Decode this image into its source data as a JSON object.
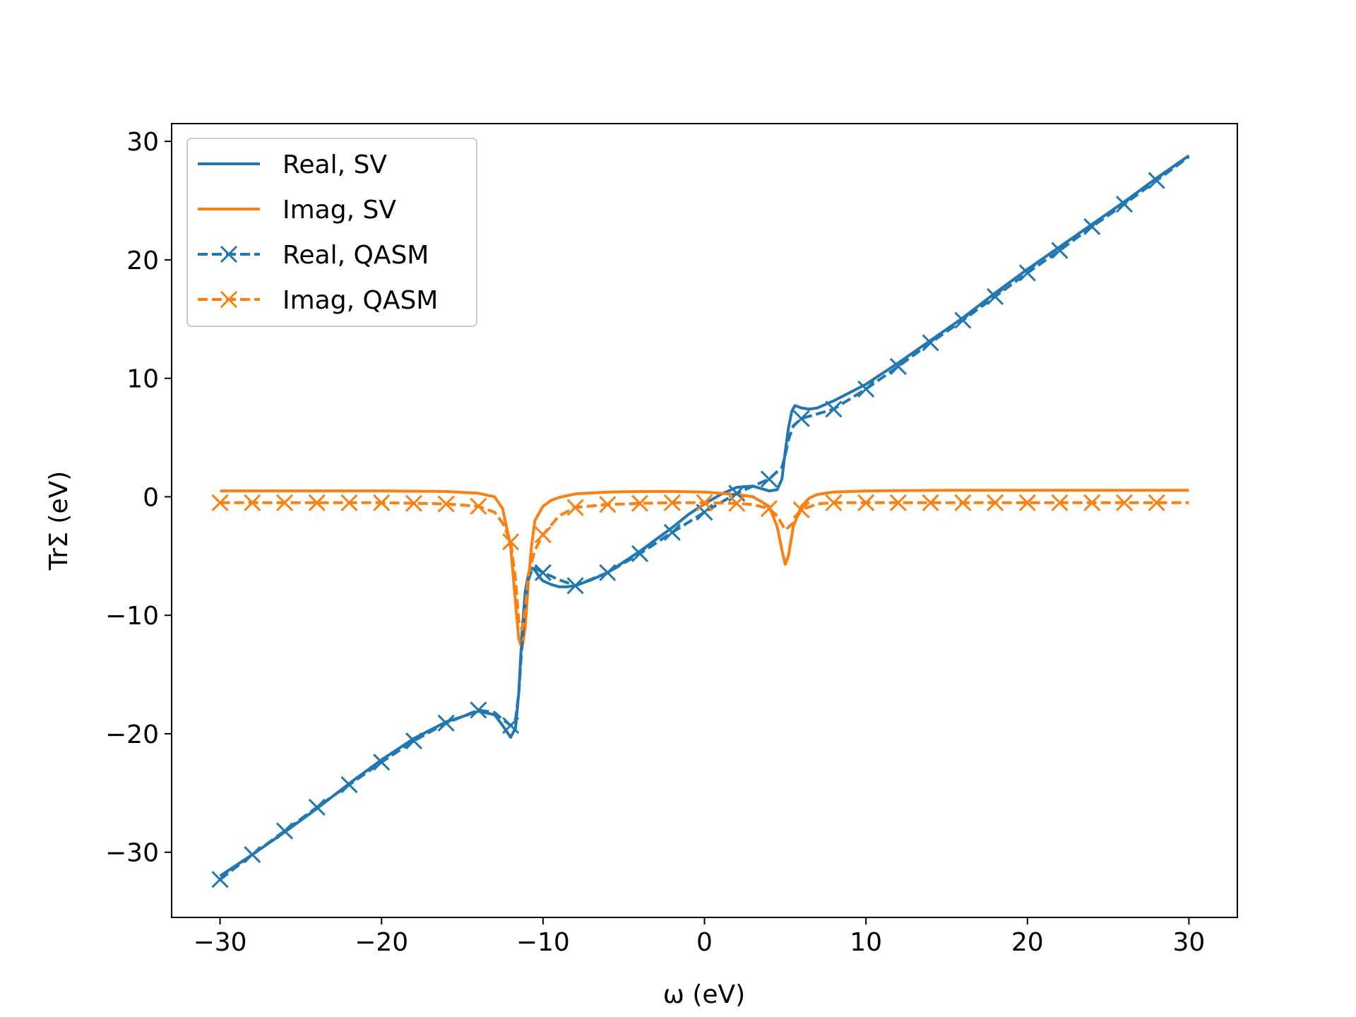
{
  "chart_data": {
    "type": "line",
    "xlabel": "ω (eV)",
    "ylabel": "TrΣ (eV)",
    "xlim": [
      -33,
      33
    ],
    "ylim": [
      -35.5,
      31.5
    ],
    "xticks": [
      -30,
      -20,
      -10,
      0,
      10,
      20,
      30
    ],
    "yticks": [
      -30,
      -20,
      -10,
      0,
      10,
      20,
      30
    ],
    "xtick_labels": [
      "−30",
      "−20",
      "−10",
      "0",
      "10",
      "20",
      "30"
    ],
    "ytick_labels": [
      "−30",
      "−20",
      "−10",
      "0",
      "10",
      "20",
      "30"
    ],
    "grid": false,
    "legend_position": "upper-left",
    "series": [
      {
        "name": "Real, SV",
        "color": "#1f77b4",
        "style": "solid",
        "marker": "none",
        "x": [
          -30,
          -28,
          -26,
          -24,
          -22,
          -20,
          -18,
          -16,
          -14,
          -13,
          -12.5,
          -12,
          -11.7,
          -11.5,
          -11.3,
          -11.1,
          -10.9,
          -10.7,
          -10.5,
          -10.2,
          -10,
          -9.5,
          -9,
          -8.5,
          -8,
          -7,
          -6,
          -5,
          -4,
          -3,
          -2,
          -1,
          0,
          1,
          2,
          3,
          3.5,
          4,
          4.5,
          4.8,
          5,
          5.2,
          5.4,
          5.6,
          5.8,
          6,
          6.5,
          7,
          8,
          9,
          10,
          12,
          14,
          16,
          18,
          20,
          22,
          24,
          26,
          28,
          30
        ],
        "y": [
          -32,
          -30.2,
          -28.3,
          -26.3,
          -24.2,
          -22.2,
          -20.4,
          -19,
          -18.1,
          -18.4,
          -19.3,
          -20.3,
          -19.5,
          -16.5,
          -11.5,
          -8,
          -6.5,
          -6,
          -6.2,
          -6.8,
          -7.1,
          -7.4,
          -7.6,
          -7.6,
          -7.5,
          -7,
          -6.4,
          -5.5,
          -4.6,
          -3.6,
          -2.6,
          -1.5,
          -0.6,
          0.2,
          0.8,
          0.9,
          0.7,
          0.5,
          0.6,
          1.5,
          3.8,
          5.8,
          7.2,
          7.7,
          7.6,
          7.5,
          7.4,
          7.5,
          8.1,
          8.8,
          9.5,
          11.3,
          13.2,
          15.1,
          17.2,
          19.2,
          21.1,
          23.0,
          24.9,
          26.9,
          28.8
        ]
      },
      {
        "name": "Imag, SV",
        "color": "#ff7f0e",
        "style": "solid",
        "marker": "none",
        "x": [
          -30,
          -25,
          -20,
          -16,
          -14,
          -13,
          -12.5,
          -12,
          -11.7,
          -11.5,
          -11.3,
          -11.1,
          -10.9,
          -10.7,
          -10.5,
          -10,
          -9.5,
          -9,
          -8,
          -6,
          -4,
          -2,
          0,
          2,
          3,
          4,
          4.5,
          4.8,
          5,
          5.2,
          5.5,
          6,
          6.5,
          7,
          8,
          10,
          15,
          20,
          25,
          30
        ],
        "y": [
          0.5,
          0.5,
          0.5,
          0.45,
          0.3,
          0,
          -1,
          -4.2,
          -9,
          -12,
          -12.8,
          -11,
          -7,
          -4,
          -2,
          -0.8,
          -0.3,
          -0.05,
          0.25,
          0.4,
          0.45,
          0.45,
          0.4,
          0.2,
          0,
          -0.8,
          -2.5,
          -4.5,
          -5.7,
          -5,
          -2.5,
          -0.8,
          -0.1,
          0.2,
          0.4,
          0.5,
          0.55,
          0.55,
          0.55,
          0.55
        ]
      },
      {
        "name": "Real, QASM",
        "color": "#1f77b4",
        "style": "dashed",
        "marker": "x",
        "x": [
          -30,
          -28,
          -26,
          -24,
          -22,
          -20,
          -18,
          -16,
          -14,
          -13,
          -12.5,
          -12,
          -11.7,
          -11.5,
          -11.3,
          -11.1,
          -10.9,
          -10.7,
          -10.5,
          -10,
          -9,
          -8,
          -6,
          -4,
          -2,
          0,
          2,
          4,
          4.8,
          5,
          5.2,
          5.5,
          6,
          8,
          10,
          12,
          14,
          16,
          18,
          20,
          22,
          24,
          26,
          28,
          30
        ],
        "y": [
          -32.3,
          -30.2,
          -28.2,
          -26.2,
          -24.3,
          -22.4,
          -20.6,
          -19.1,
          -18,
          -18.2,
          -18.8,
          -19.3,
          -18.8,
          -16.5,
          -12.5,
          -9,
          -7,
          -6.2,
          -6,
          -6.4,
          -7,
          -7.5,
          -6.4,
          -4.8,
          -3.0,
          -1.3,
          0.3,
          1.5,
          2.5,
          3.5,
          4.8,
          6,
          6.6,
          7.4,
          9.1,
          11.0,
          13.0,
          14.9,
          16.9,
          18.9,
          20.8,
          22.8,
          24.7,
          26.7,
          28.7
        ]
      },
      {
        "name": "Imag, QASM",
        "color": "#ff7f0e",
        "style": "dashed",
        "marker": "x",
        "x": [
          -30,
          -28,
          -26,
          -24,
          -22,
          -20,
          -18,
          -16,
          -14,
          -13,
          -12.5,
          -12,
          -11.7,
          -11.5,
          -11.3,
          -11.1,
          -10.9,
          -10.5,
          -10,
          -9,
          -8,
          -6,
          -4,
          -2,
          0,
          2,
          3,
          4,
          4.5,
          5,
          5.5,
          6,
          7,
          8,
          10,
          12,
          14,
          16,
          18,
          20,
          22,
          24,
          26,
          28,
          30
        ],
        "y": [
          -0.5,
          -0.5,
          -0.5,
          -0.5,
          -0.5,
          -0.5,
          -0.55,
          -0.6,
          -0.8,
          -1.3,
          -2.2,
          -3.8,
          -7,
          -10.5,
          -11.2,
          -9.5,
          -6.5,
          -4.5,
          -3.2,
          -1.6,
          -0.9,
          -0.65,
          -0.55,
          -0.5,
          -0.5,
          -0.55,
          -0.65,
          -1,
          -1.6,
          -2.8,
          -2.2,
          -1.1,
          -0.6,
          -0.5,
          -0.5,
          -0.5,
          -0.5,
          -0.5,
          -0.5,
          -0.5,
          -0.5,
          -0.5,
          -0.5,
          -0.5,
          -0.5
        ]
      }
    ]
  }
}
